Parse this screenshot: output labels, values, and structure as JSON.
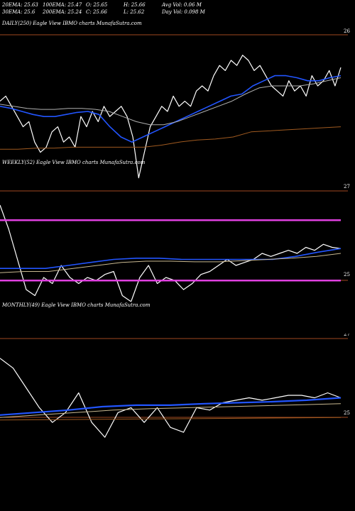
{
  "header": {
    "ema20": "20EMA: 25.63",
    "ema100": "100EMA: 25.47",
    "open": "O: 25.65",
    "high": "H: 25.66",
    "avg_vol": "Avg Vol: 0.06  M",
    "ema30": "30EMA: 25.6",
    "ema200": "200EMA: 25.24",
    "close": "C: 25.66",
    "low": "L: 25.62",
    "day_vol": "Day Vol: 0.098 M"
  },
  "colors": {
    "background": "#000000",
    "price": "#ffffff",
    "ema_blue": "#2255ff",
    "ema_gray": "#b0b0b0",
    "ema_tan": "#c8b890",
    "ema_brown": "#a05a20",
    "level_line": "#a04820",
    "magenta": "#e040e0"
  },
  "chart_data": [
    {
      "type": "line",
      "title": "DAILY(250) Eagle  View  IBMO charts MunafaSutra.com",
      "y_tick_labels": [
        "26"
      ],
      "series": [
        {
          "values": [
            25.35,
            25.4,
            25.3,
            25.2,
            25.1,
            25.15,
            24.95,
            24.85,
            24.9,
            25.05,
            25.1,
            24.95,
            25.0,
            24.9,
            25.2,
            25.1,
            25.25,
            25.15,
            25.3,
            25.2,
            25.25,
            25.3,
            25.2,
            25.0,
            24.6,
            24.85,
            25.1,
            25.2,
            25.3,
            25.25,
            25.4,
            25.3,
            25.35,
            25.3,
            25.45,
            25.5,
            25.45,
            25.6,
            25.7,
            25.65,
            25.75,
            25.7,
            25.8,
            25.75,
            25.65,
            25.7,
            25.6,
            25.5,
            25.45,
            25.4,
            25.55,
            25.45,
            25.5,
            25.4,
            25.6,
            25.5,
            25.55,
            25.65,
            25.5,
            25.68
          ]
        },
        {
          "values": [
            25.3,
            25.28,
            25.25,
            25.22,
            25.2,
            25.2,
            25.22,
            25.24,
            25.25,
            25.22,
            25.1,
            25.0,
            24.95,
            25.0,
            25.05,
            25.1,
            25.15,
            25.2,
            25.25,
            25.3,
            25.35,
            25.4,
            25.42,
            25.5,
            25.55,
            25.6,
            25.6,
            25.58,
            25.55,
            25.55,
            25.58,
            25.6
          ]
        },
        {
          "values": [
            25.32,
            25.3,
            25.28,
            25.27,
            25.27,
            25.28,
            25.28,
            25.27,
            25.25,
            25.2,
            25.15,
            25.12,
            25.12,
            25.15,
            25.2,
            25.25,
            25.3,
            25.35,
            25.42,
            25.48,
            25.5,
            25.5,
            25.5,
            25.52,
            25.55,
            25.58
          ]
        },
        {
          "values": [
            24.88,
            24.88,
            24.89,
            24.89,
            24.9,
            24.9,
            24.9,
            24.9,
            24.9,
            24.92,
            24.95,
            24.97,
            24.98,
            25.0,
            25.05,
            25.06,
            25.07,
            25.08,
            25.09,
            25.1
          ]
        }
      ]
    },
    {
      "type": "line",
      "title": "WEEKLY(52) Eagle  View  IBMO charts MunafaSutra.com",
      "y_tick_labels": [
        "27",
        "25"
      ],
      "series": [
        {
          "values": [
            26.5,
            26.1,
            25.6,
            25.1,
            25.0,
            25.3,
            25.2,
            25.5,
            25.3,
            25.2,
            25.3,
            25.25,
            25.35,
            25.4,
            25.0,
            24.9,
            25.3,
            25.5,
            25.2,
            25.3,
            25.25,
            25.1,
            25.2,
            25.35,
            25.4,
            25.5,
            25.6,
            25.5,
            25.55,
            25.6,
            25.7,
            25.65,
            25.7,
            25.75,
            25.7,
            25.8,
            25.75,
            25.85,
            25.8,
            25.78
          ]
        },
        {
          "values": [
            25.45,
            25.45,
            25.45,
            25.5,
            25.55,
            25.6,
            25.62,
            25.62,
            25.6,
            25.6,
            25.6,
            25.6,
            25.6,
            25.65,
            25.72,
            25.78
          ]
        },
        {
          "values": [
            25.38,
            25.4,
            25.4,
            25.45,
            25.5,
            25.55,
            25.57,
            25.57,
            25.56,
            25.56,
            25.58,
            25.6,
            25.62,
            25.65,
            25.7
          ]
        },
        {
          "values": [
            26.25,
            25.25
          ]
        }
      ]
    },
    {
      "type": "line",
      "title": "MONTHLY(49) Eagle  View  IBMO charts MunafaSutra.com",
      "y_tick_labels": [
        "27",
        "25"
      ],
      "series": [
        {
          "values": [
            26.6,
            26.4,
            26.0,
            25.6,
            25.3,
            25.5,
            25.9,
            25.3,
            25.0,
            25.5,
            25.6,
            25.3,
            25.6,
            25.2,
            25.1,
            25.6,
            25.55,
            25.7,
            25.75,
            25.8,
            25.75,
            25.8,
            25.85,
            25.85,
            25.8,
            25.9,
            25.8
          ]
        },
        {
          "values": [
            25.45,
            25.5,
            25.55,
            25.62,
            25.65,
            25.65,
            25.68,
            25.7,
            25.72,
            25.75,
            25.8
          ]
        },
        {
          "values": [
            25.4,
            25.45,
            25.5,
            25.55,
            25.58,
            25.6,
            25.62,
            25.64,
            25.66,
            25.68
          ]
        },
        {
          "values": [
            25.35,
            25.36,
            25.37,
            25.38,
            25.39,
            25.4
          ]
        }
      ]
    }
  ]
}
